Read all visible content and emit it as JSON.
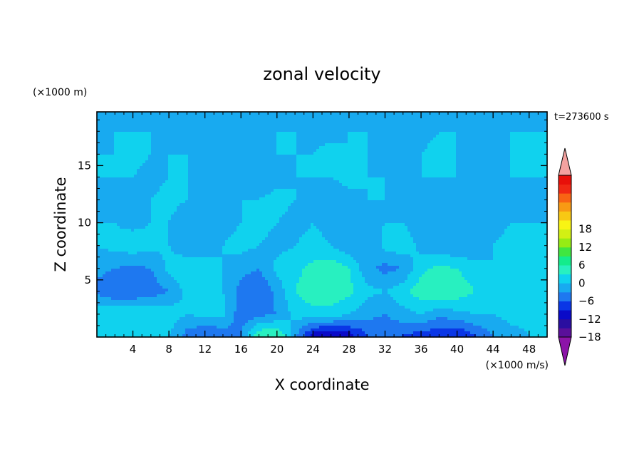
{
  "chart_data": {
    "type": "heatmap",
    "title": "zonal velocity",
    "xlabel": "X coordinate",
    "ylabel": "Z coordinate",
    "x_unit": "(×1000 m/s)",
    "y_unit": "(×1000 m)",
    "time_label": "t=273600 s",
    "xlim": [
      0,
      50
    ],
    "ylim": [
      0,
      19.7
    ],
    "x_ticks": [
      4,
      8,
      12,
      16,
      20,
      24,
      28,
      32,
      36,
      40,
      44,
      48
    ],
    "y_ticks": [
      5,
      10,
      15
    ],
    "grid": false,
    "colorbar": {
      "ticks": [
        18,
        12,
        6,
        0,
        -6,
        -12,
        -18
      ],
      "range": [
        -21,
        21
      ],
      "step": 3,
      "colors": [
        "#5a0f9a",
        "#2a0ea0",
        "#0a0ac8",
        "#0a36e6",
        "#1e78f0",
        "#18aaf0",
        "#10d2ee",
        "#28f0c0",
        "#14ec8c",
        "#40e640",
        "#96ec14",
        "#d2f014",
        "#f8f414",
        "#f8c814",
        "#f89a14",
        "#f86414",
        "#f02814",
        "#e8100a"
      ],
      "extend_max_color": "#f4a2a0",
      "extend_min_color": "#8c14a8"
    },
    "velocity_field": {
      "nx": 26,
      "nz": 11,
      "x": [
        0,
        2,
        4,
        6,
        8,
        10,
        12,
        14,
        16,
        18,
        20,
        22,
        24,
        26,
        28,
        30,
        32,
        34,
        36,
        38,
        40,
        42,
        44,
        46,
        48,
        50
      ],
      "z": [
        0.2,
        2,
        4,
        6,
        8,
        10,
        12,
        14,
        16,
        18,
        19.7
      ],
      "values": [
        [
          1,
          2,
          3,
          2,
          0,
          -4,
          -6,
          -5,
          -3,
          5,
          6,
          -2,
          -10,
          -12,
          -10,
          -6,
          -5,
          -6,
          -7,
          -8,
          -9,
          -6,
          -3,
          -1,
          0,
          1
        ],
        [
          2,
          3,
          3,
          3,
          2,
          0,
          1,
          1,
          -5,
          -4,
          -3,
          1,
          2,
          2,
          0,
          -2,
          -3,
          -1,
          0,
          -2,
          -1,
          0,
          0,
          1,
          1,
          1
        ],
        [
          -4,
          -6,
          -6,
          -5,
          -3,
          1,
          2,
          0,
          -4,
          -6,
          -2,
          3,
          5,
          5,
          4,
          1,
          0,
          2,
          5,
          6,
          5,
          3,
          1,
          0,
          1,
          1
        ],
        [
          -2,
          -3,
          -4,
          -3,
          1,
          2,
          1,
          0,
          -2,
          -3,
          1,
          2,
          4,
          5,
          3,
          -2,
          -4,
          -3,
          2,
          4,
          3,
          1,
          0,
          0,
          1,
          1
        ],
        [
          0,
          1,
          2,
          1,
          0,
          -2,
          -1,
          0,
          1,
          0,
          -1,
          0,
          1,
          0,
          -2,
          -3,
          1,
          2,
          -1,
          -2,
          -3,
          -2,
          0,
          1,
          0,
          0
        ],
        [
          0,
          0,
          -1,
          0,
          0,
          -2,
          -3,
          -1,
          0,
          1,
          0,
          -1,
          0,
          -1,
          -2,
          -1,
          0,
          0,
          -2,
          -1,
          0,
          0,
          -1,
          0,
          0,
          0
        ],
        [
          -1,
          -2,
          -1,
          0,
          1,
          0,
          -1,
          -2,
          0,
          0,
          1,
          0,
          -1,
          -2,
          -1,
          0,
          0,
          -2,
          -2,
          -1,
          0,
          -1,
          -2,
          -2,
          -1,
          0
        ],
        [
          0,
          0,
          0,
          -1,
          0,
          0,
          0,
          -1,
          -2,
          -2,
          -1,
          0,
          0,
          0,
          1,
          0,
          0,
          -1,
          0,
          0,
          0,
          -1,
          0,
          0,
          0,
          0
        ],
        [
          0,
          0,
          1,
          0,
          0,
          0,
          -1,
          -1,
          0,
          0,
          0,
          0,
          0,
          1,
          0,
          0,
          -1,
          0,
          0,
          1,
          0,
          -1,
          -1,
          0,
          0,
          0
        ],
        [
          -1,
          0,
          0,
          0,
          -1,
          -1,
          0,
          0,
          0,
          -1,
          0,
          0,
          -1,
          -1,
          0,
          0,
          0,
          -1,
          -1,
          0,
          0,
          -1,
          0,
          0,
          0,
          0
        ],
        [
          -2,
          -2,
          -2,
          -2,
          -2,
          -2,
          -2,
          -2,
          -2,
          -2,
          -2,
          -2,
          -2,
          -2,
          -2,
          -2,
          -2,
          -2,
          -2,
          -2,
          -2,
          -2,
          -2,
          -2,
          -2,
          -2
        ]
      ]
    }
  }
}
